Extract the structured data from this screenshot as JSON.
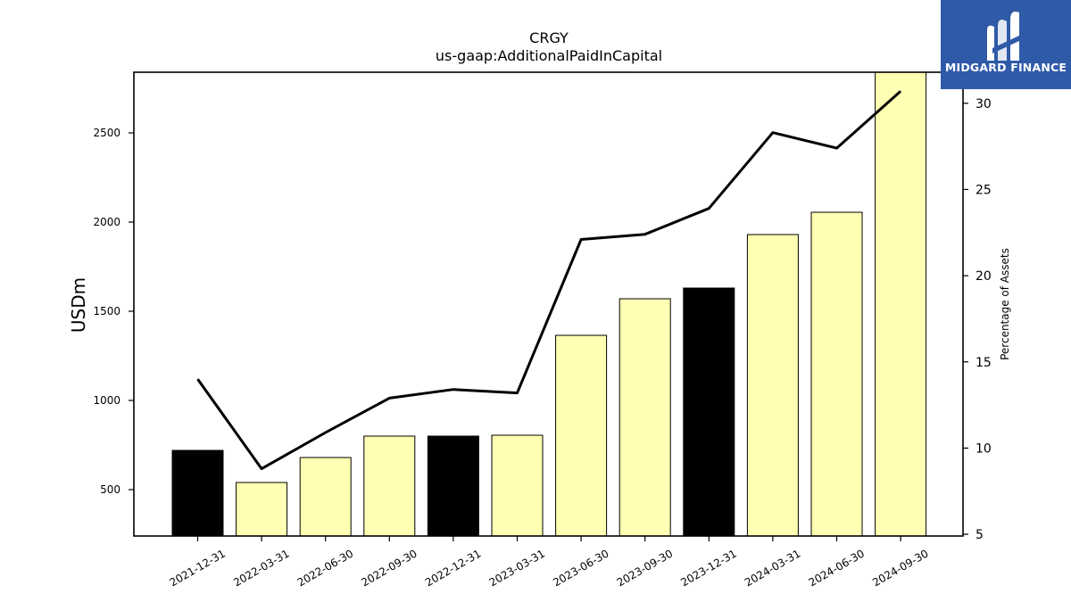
{
  "logo": {
    "text": "MIDGARD FINANCE"
  },
  "chart_data": {
    "type": "bar",
    "title": "CRGY",
    "subtitle": "us-gaap:AdditionalPaidInCapital",
    "ylabel": "USDm",
    "y2label": "Percentage of Assets",
    "categories": [
      "2021-12-31",
      "2022-03-31",
      "2022-06-30",
      "2022-09-30",
      "2022-12-31",
      "2023-03-31",
      "2023-06-30",
      "2023-09-30",
      "2023-12-31",
      "2024-03-31",
      "2024-06-30",
      "2024-09-30"
    ],
    "values": [
      720,
      540,
      680,
      800,
      800,
      805,
      1365,
      1570,
      1630,
      1930,
      2055,
      2850
    ],
    "bar_colors": [
      "#000000",
      "#ffffb3",
      "#ffffb3",
      "#ffffb3",
      "#000000",
      "#ffffb3",
      "#ffffb3",
      "#ffffb3",
      "#000000",
      "#ffffb3",
      "#ffffb3",
      "#ffffb3"
    ],
    "line_series": {
      "values": [
        14.0,
        8.8,
        10.9,
        12.9,
        13.4,
        13.2,
        22.1,
        22.4,
        23.9,
        28.3,
        27.4,
        30.7
      ]
    },
    "ylim": [
      240,
      2840
    ],
    "y2lim": [
      4.9,
      31.8
    ],
    "yticks": [
      500,
      1000,
      1500,
      2000,
      2500
    ],
    "y2ticks": [
      5,
      10,
      15,
      20,
      25,
      30
    ],
    "grid": false
  }
}
